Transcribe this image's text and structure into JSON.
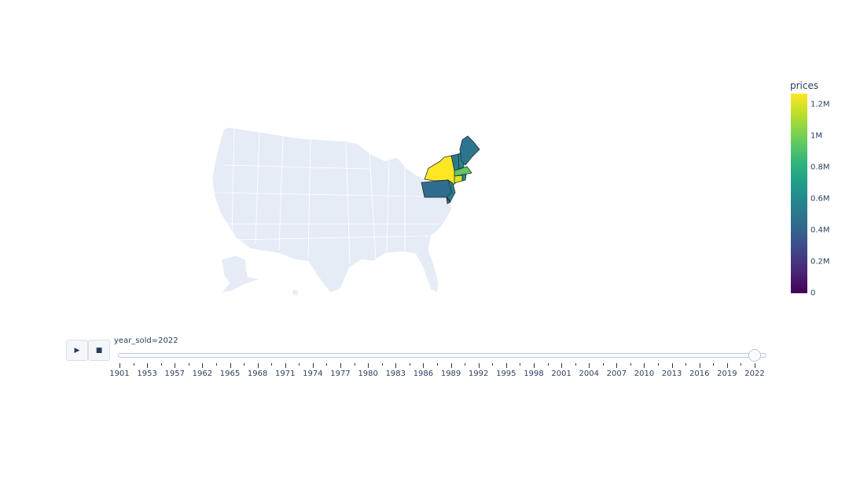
{
  "map": {
    "scope": "usa",
    "land_color": "#e5ecf6",
    "border_color": "#ffffff",
    "states": [
      {
        "code": "NY",
        "value": 1270000
      },
      {
        "code": "CT",
        "value": 1200000
      },
      {
        "code": "MA",
        "value": 950000
      },
      {
        "code": "NH",
        "value": 600000
      },
      {
        "code": "RI",
        "value": 620000
      },
      {
        "code": "NJ",
        "value": 560000
      },
      {
        "code": "VT",
        "value": 520000
      },
      {
        "code": "ME",
        "value": 500000
      },
      {
        "code": "PA",
        "value": 450000
      },
      {
        "code": "DE",
        "value": 400000
      }
    ]
  },
  "colorbar": {
    "title": "prices",
    "colorscale": "Viridis",
    "range": [
      0,
      1270000
    ],
    "ticks": [
      "0",
      "0.2M",
      "0.4M",
      "0.6M",
      "0.8M",
      "1M",
      "1.2M"
    ],
    "tick_values": [
      0,
      200000,
      400000,
      600000,
      800000,
      1000000,
      1200000
    ]
  },
  "animation": {
    "play_icon": "play-icon",
    "stop_icon": "stop-icon",
    "current_label": "year_sold=2022",
    "steps": [
      "1901",
      "1953",
      "1957",
      "1962",
      "1965",
      "1968",
      "1971",
      "1974",
      "1977",
      "1980",
      "1983",
      "1986",
      "1989",
      "1992",
      "1995",
      "1998",
      "2001",
      "2004",
      "2007",
      "2010",
      "2013",
      "2016",
      "2019",
      "2022"
    ],
    "active": "2022"
  }
}
